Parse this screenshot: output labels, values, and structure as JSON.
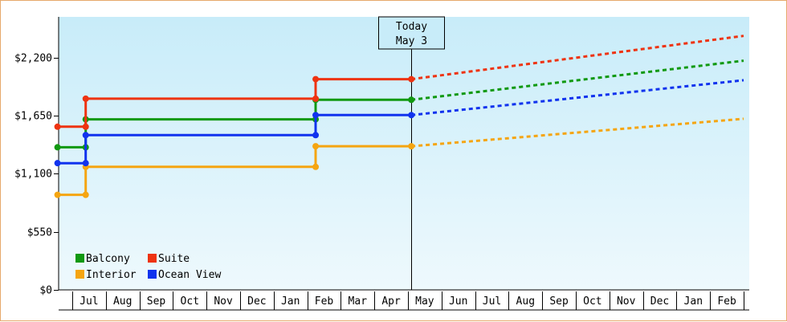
{
  "chart_data": {
    "type": "line",
    "y_ticks": [
      "$0",
      "$550",
      "$1,100",
      "$1,650",
      "$2,200"
    ],
    "y_tick_values": [
      0,
      550,
      1100,
      1650,
      2200
    ],
    "ylim": [
      0,
      2585
    ],
    "x_tick_labels": [
      "Jul",
      "Aug",
      "Sep",
      "Oct",
      "Nov",
      "Dec",
      "Jan",
      "Feb",
      "Mar",
      "Apr",
      "May",
      "Jun",
      "Jul",
      "Aug",
      "Sep",
      "Oct",
      "Nov",
      "Dec",
      "Jan",
      "Feb"
    ],
    "x_range_months": [
      -0.44,
      20.0
    ],
    "today": {
      "line1": "Today",
      "line2": "May 3",
      "x_month": 10.1
    },
    "legend": [
      {
        "name": "Balcony",
        "color": "#119911"
      },
      {
        "name": "Suite",
        "color": "#ee3311"
      },
      {
        "name": "Interior",
        "color": "#f5a511"
      },
      {
        "name": "Ocean View",
        "color": "#1133ee"
      }
    ],
    "series": [
      {
        "name": "Balcony",
        "color": "#119911",
        "history": [
          [
            -0.44,
            1350
          ],
          [
            0.4,
            1350
          ],
          [
            0.4,
            1615
          ],
          [
            7.25,
            1615
          ],
          [
            7.25,
            1800
          ],
          [
            10.1,
            1800
          ]
        ],
        "markers": [
          [
            -0.44,
            1350
          ],
          [
            0.4,
            1350
          ],
          [
            0.4,
            1615
          ],
          [
            7.25,
            1615
          ],
          [
            7.25,
            1800
          ],
          [
            10.1,
            1800
          ]
        ],
        "forecast": [
          [
            10.1,
            1800
          ],
          [
            20.0,
            2170
          ]
        ]
      },
      {
        "name": "Suite",
        "color": "#ee3311",
        "history": [
          [
            -0.44,
            1545
          ],
          [
            0.4,
            1545
          ],
          [
            0.4,
            1810
          ],
          [
            7.25,
            1810
          ],
          [
            7.25,
            1995
          ],
          [
            10.1,
            1995
          ]
        ],
        "markers": [
          [
            -0.44,
            1545
          ],
          [
            0.4,
            1545
          ],
          [
            0.4,
            1810
          ],
          [
            7.25,
            1810
          ],
          [
            7.25,
            1995
          ],
          [
            10.1,
            1995
          ]
        ],
        "forecast": [
          [
            10.1,
            1995
          ],
          [
            20.0,
            2405
          ]
        ]
      },
      {
        "name": "Interior",
        "color": "#f5a511",
        "history": [
          [
            -0.44,
            900
          ],
          [
            0.4,
            900
          ],
          [
            0.4,
            1165
          ],
          [
            7.25,
            1165
          ],
          [
            7.25,
            1360
          ],
          [
            10.1,
            1360
          ]
        ],
        "markers": [
          [
            -0.44,
            900
          ],
          [
            0.4,
            900
          ],
          [
            0.4,
            1165
          ],
          [
            7.25,
            1165
          ],
          [
            7.25,
            1360
          ],
          [
            10.1,
            1360
          ]
        ],
        "forecast": [
          [
            10.1,
            1360
          ],
          [
            20.0,
            1620
          ]
        ]
      },
      {
        "name": "Ocean View",
        "color": "#1133ee",
        "history": [
          [
            -0.44,
            1200
          ],
          [
            0.4,
            1200
          ],
          [
            0.4,
            1465
          ],
          [
            7.25,
            1465
          ],
          [
            7.25,
            1655
          ],
          [
            10.1,
            1655
          ]
        ],
        "markers": [
          [
            -0.44,
            1200
          ],
          [
            0.4,
            1200
          ],
          [
            0.4,
            1465
          ],
          [
            7.25,
            1465
          ],
          [
            7.25,
            1655
          ],
          [
            10.1,
            1655
          ]
        ],
        "forecast": [
          [
            10.1,
            1655
          ],
          [
            20.0,
            1985
          ]
        ]
      }
    ]
  }
}
